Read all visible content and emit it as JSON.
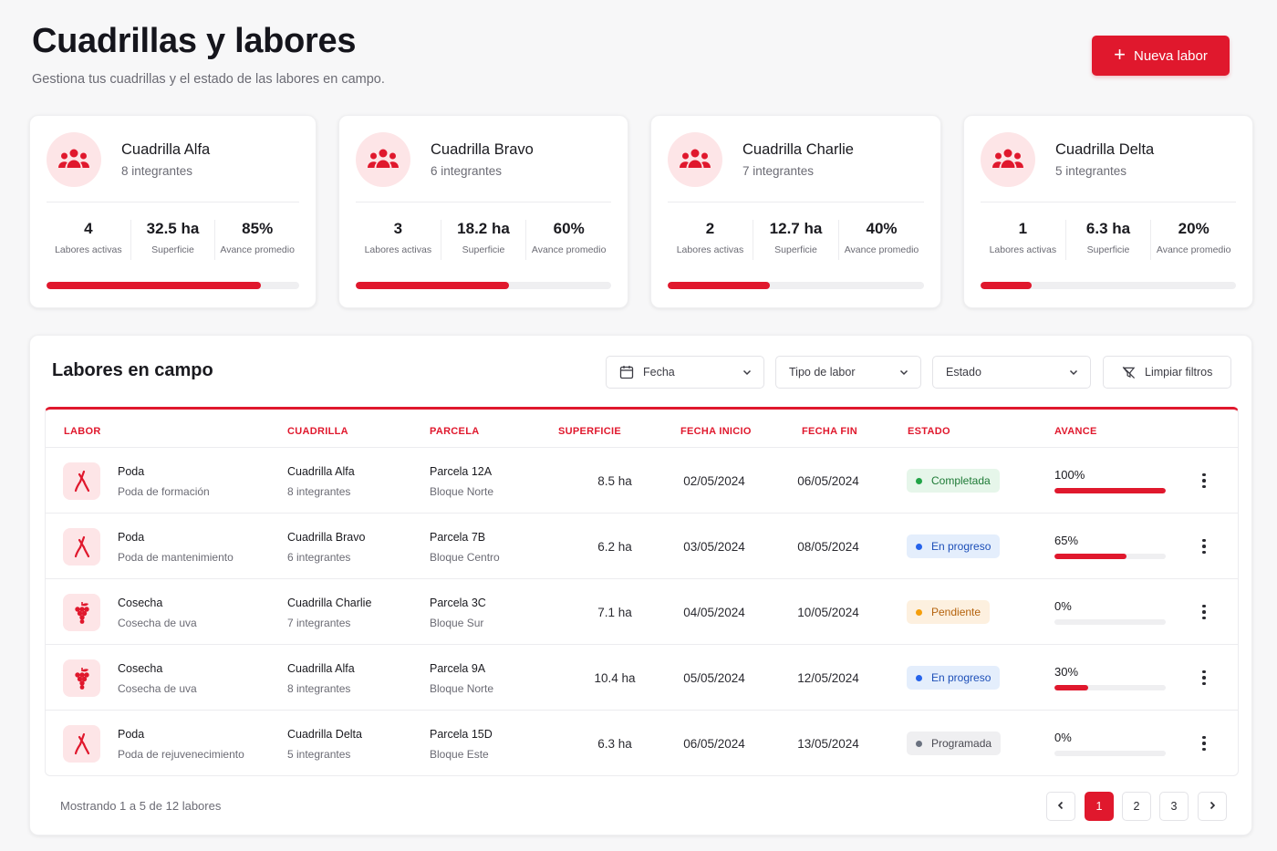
{
  "header": {
    "title": "Cuadrillas y labores",
    "subtitle": "Gestiona tus cuadrillas y el estado de las labores en campo.",
    "new_button_label": "Nueva labor"
  },
  "crews": [
    {
      "name": "Cuadrilla Alfa",
      "members": "8 integrantes",
      "active": "4",
      "area": "32.5 ha",
      "avg": "85%",
      "progress": 0.85
    },
    {
      "name": "Cuadrilla Bravo",
      "members": "6 integrantes",
      "active": "3",
      "area": "18.2 ha",
      "avg": "60%",
      "progress": 0.6
    },
    {
      "name": "Cuadrilla Charlie",
      "members": "7 integrantes",
      "active": "2",
      "area": "12.7 ha",
      "avg": "40%",
      "progress": 0.4
    },
    {
      "name": "Cuadrilla Delta",
      "members": "5 integrantes",
      "active": "1",
      "area": "6.3 ha",
      "avg": "20%",
      "progress": 0.2
    }
  ],
  "crew_stat_labels": {
    "active": "Labores activas",
    "area": "Superficie",
    "avg": "Avance promedio"
  },
  "panel": {
    "title": "Labores en campo",
    "filters": {
      "date": "Fecha",
      "type": "Tipo de labor",
      "status": "Estado",
      "clear": "Limpiar filtros"
    }
  },
  "table": {
    "headers": [
      "LABOR",
      "CUADRILLA",
      "PARCELA",
      "SUPERFICIE",
      "FECHA INICIO",
      "FECHA FIN",
      "ESTADO",
      "AVANCE"
    ],
    "rows": [
      {
        "icon": "pruning-shears-icon",
        "labor": "Poda",
        "labor_sub": "Poda de formación",
        "crew": "Cuadrilla Alfa",
        "crew_sub": "8 integrantes",
        "plot": "Parcela 12A",
        "plot_sub": "Bloque Norte",
        "area": "8.5 ha",
        "start": "02/05/2024",
        "end": "06/05/2024",
        "status": "Completada",
        "status_key": "done",
        "progress_label": "100%",
        "progress": 1.0
      },
      {
        "icon": "pruning-shears-icon",
        "labor": "Poda",
        "labor_sub": "Poda de mantenimiento",
        "crew": "Cuadrilla Bravo",
        "crew_sub": "6 integrantes",
        "plot": "Parcela 7B",
        "plot_sub": "Bloque Centro",
        "area": "6.2 ha",
        "start": "03/05/2024",
        "end": "08/05/2024",
        "status": "En progreso",
        "status_key": "progress",
        "progress_label": "65%",
        "progress": 0.65
      },
      {
        "icon": "grapes-icon",
        "labor": "Cosecha",
        "labor_sub": "Cosecha de uva",
        "crew": "Cuadrilla Charlie",
        "crew_sub": "7 integrantes",
        "plot": "Parcela 3C",
        "plot_sub": "Bloque Sur",
        "area": "7.1 ha",
        "start": "04/05/2024",
        "end": "10/05/2024",
        "status": "Pendiente",
        "status_key": "pending",
        "progress_label": "0%",
        "progress": 0.0
      },
      {
        "icon": "grapes-icon",
        "labor": "Cosecha",
        "labor_sub": "Cosecha de uva",
        "crew": "Cuadrilla Alfa",
        "crew_sub": "8 integrantes",
        "plot": "Parcela 9A",
        "plot_sub": "Bloque Norte",
        "area": "10.4 ha",
        "start": "05/05/2024",
        "end": "12/05/2024",
        "status": "En progreso",
        "status_key": "progress",
        "progress_label": "30%",
        "progress": 0.3
      },
      {
        "icon": "pruning-shears-icon",
        "labor": "Poda",
        "labor_sub": "Poda de rejuvenecimiento",
        "crew": "Cuadrilla Delta",
        "crew_sub": "5 integrantes",
        "plot": "Parcela 15D",
        "plot_sub": "Bloque Este",
        "area": "6.3 ha",
        "start": "06/05/2024",
        "end": "13/05/2024",
        "status": "Programada",
        "status_key": "scheduled",
        "progress_label": "0%",
        "progress": 0.0
      }
    ]
  },
  "status_colors": {
    "done": {
      "bg": "#e6f6ea",
      "fg": "#1e7a36",
      "dot": "#22a447"
    },
    "progress": {
      "bg": "#e4eefc",
      "fg": "#1d4fb8",
      "dot": "#2563eb"
    },
    "pending": {
      "bg": "#fdf0df",
      "fg": "#b5630d",
      "dot": "#f59e0b"
    },
    "scheduled": {
      "bg": "#efeff1",
      "fg": "#4a4a52",
      "dot": "#6b7280"
    }
  },
  "footer": {
    "showing": "Mostrando 1 a 5 de 12 labores",
    "pages": [
      "1",
      "2",
      "3"
    ],
    "current_page": "1"
  },
  "colors": {
    "accent": "#e0182d",
    "accent_soft": "#fde5e7"
  }
}
